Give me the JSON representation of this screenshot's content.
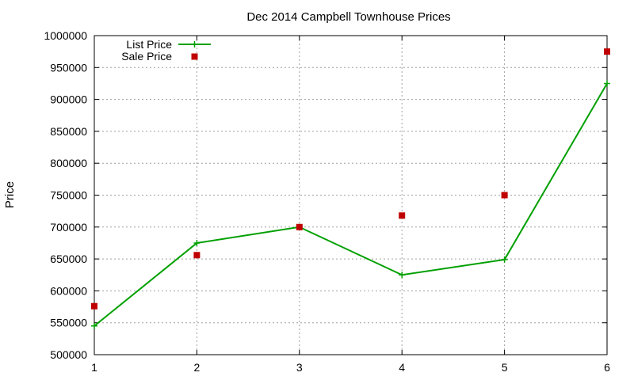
{
  "chart_data": {
    "type": "line",
    "title": "Dec 2014 Campbell Townhouse Prices",
    "ylabel": "Price",
    "xlabel": "",
    "x": [
      1,
      2,
      3,
      4,
      5,
      6
    ],
    "xlim": [
      1,
      6
    ],
    "ylim": [
      500000,
      1000000
    ],
    "y_ticks": [
      "500000",
      "550000",
      "600000",
      "650000",
      "700000",
      "750000",
      "800000",
      "850000",
      "900000",
      "950000",
      "1000000"
    ],
    "x_ticks": [
      "1",
      "2",
      "3",
      "4",
      "5",
      "6"
    ],
    "grid": true,
    "legend_position": "top-left",
    "series": [
      {
        "name": "List Price",
        "style": "line-with-plus-markers",
        "color": "#00a000",
        "values": [
          545000,
          675000,
          700000,
          625000,
          649000,
          925000
        ]
      },
      {
        "name": "Sale Price",
        "style": "square-markers",
        "color": "#c00000",
        "values": [
          576000,
          656000,
          700000,
          718000,
          750000,
          975000
        ]
      }
    ]
  }
}
